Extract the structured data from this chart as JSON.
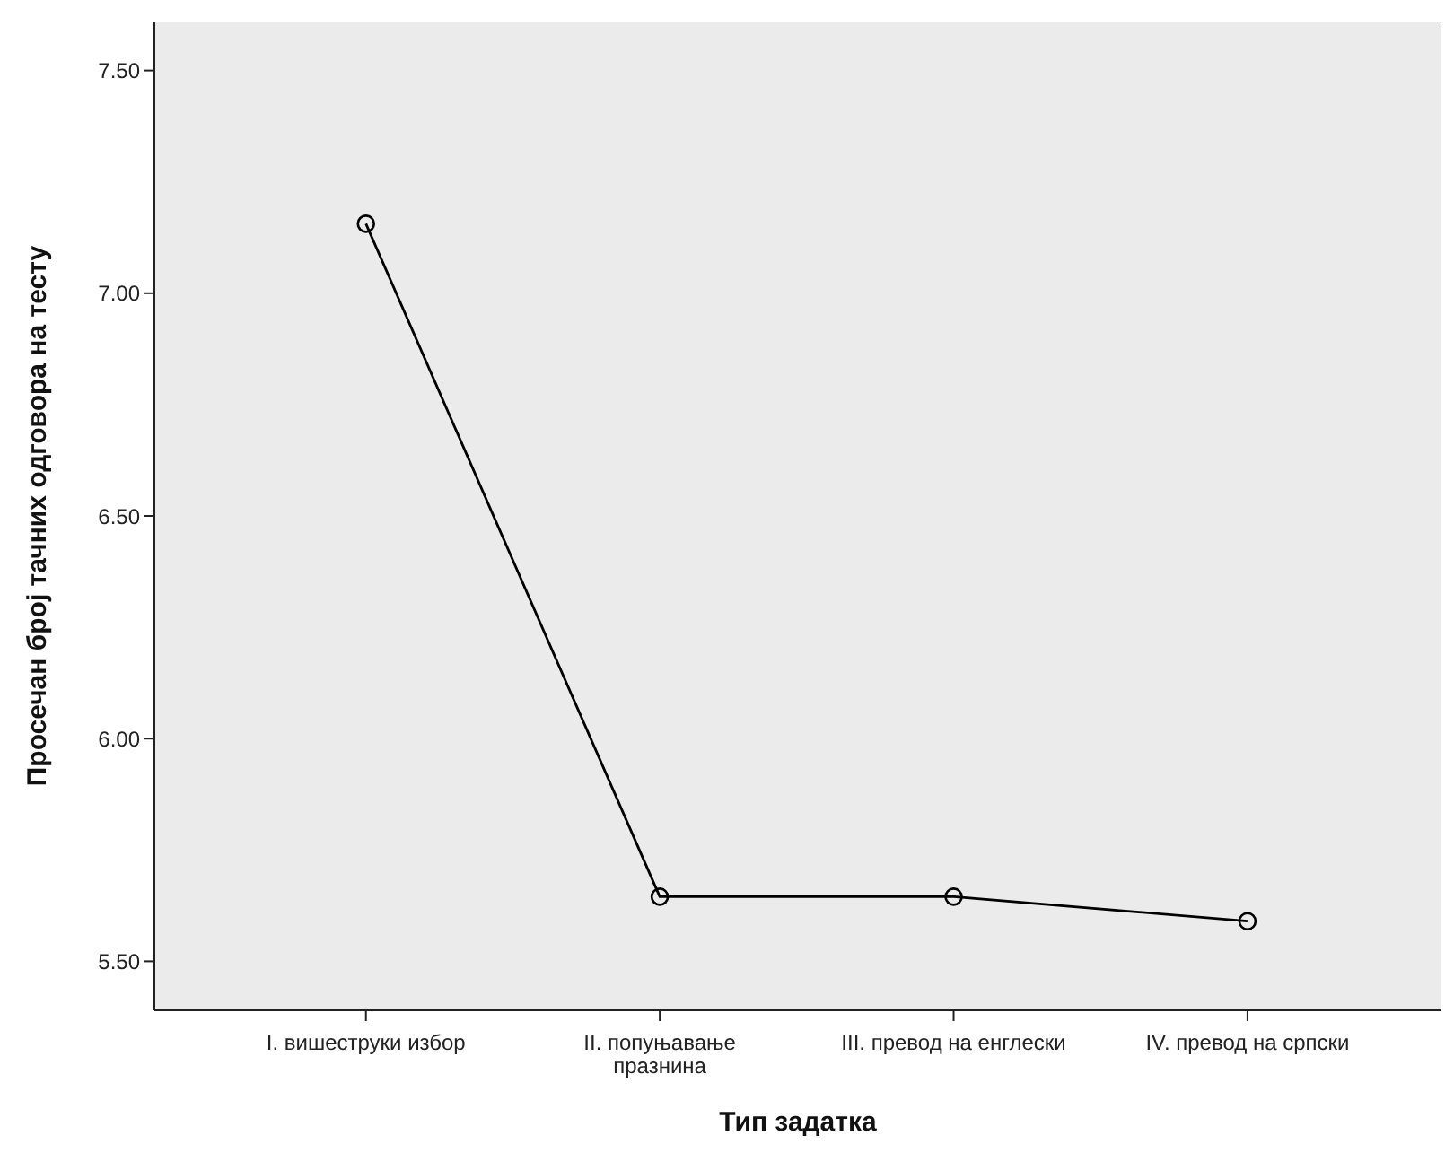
{
  "chart_data": {
    "type": "line",
    "xlabel": "Тип задатка",
    "ylabel": "Просечан број тачних одговора на тесту",
    "categories": [
      "I. вишеструки избор",
      "II. попуњавање\nпразнина",
      "III. превод на енглески",
      "IV. превод на српски"
    ],
    "series": [
      {
        "color": "#000000",
        "values": [
          7.156,
          5.645,
          5.645,
          5.59
        ]
      }
    ],
    "ylim": [
      5.39,
      7.61
    ],
    "yticks": [
      {
        "value": 5.5,
        "label": "5.50"
      },
      {
        "value": 6,
        "label": "6.00"
      },
      {
        "value": 6.5,
        "label": "6.50"
      },
      {
        "value": 7,
        "label": "7.00"
      },
      {
        "value": 7.5,
        "label": "7.50"
      }
    ],
    "grid": false,
    "legend": false,
    "marker": "circle",
    "line_style": "solid"
  }
}
